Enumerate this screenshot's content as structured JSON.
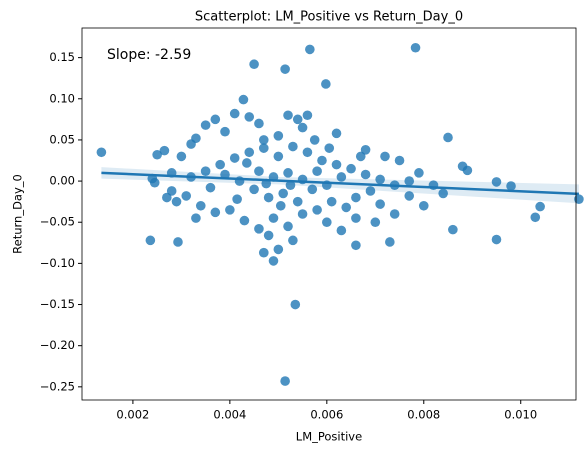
{
  "chart_data": {
    "type": "scatter",
    "title": "Scatterplot: LM_Positive vs Return_Day_0",
    "x_label": "LM_Positive",
    "y_label": "Return_Day_0",
    "annotation": "Slope: -2.59",
    "color": "#1f77b4",
    "x": [
      0.00565,
      0.00783,
      0.0045,
      0.00514,
      0.00598,
      0.00428,
      0.00535,
      0.00514,
      0.00236,
      0.00293,
      0.00135,
      0.0112,
      0.0104,
      0.0103,
      0.0095,
      0.0095,
      0.0098,
      0.0089,
      0.0088,
      0.0085,
      0.0086,
      0.0073,
      0.0066,
      0.0047,
      0.0049,
      0.005,
      0.0053,
      0.0048,
      0.00265,
      0.0025,
      0.0024,
      0.00245,
      0.0028,
      0.0029,
      0.003,
      0.0032,
      0.0033,
      0.0035,
      0.0037,
      0.0039,
      0.0041,
      0.0044,
      0.0046,
      0.0052,
      0.0054,
      0.0056,
      0.0055,
      0.0062,
      0.005,
      0.0047,
      0.0068,
      0.0072,
      0.0075,
      0.0079,
      0.0082,
      0.008,
      0.0077,
      0.0074,
      0.0071,
      0.0069,
      0.0066,
      0.0063,
      0.006,
      0.0058,
      0.0055,
      0.0052,
      0.0049,
      0.0046,
      0.0043,
      0.004,
      0.0037,
      0.0034,
      0.0031,
      0.0028,
      0.0032,
      0.0035,
      0.0038,
      0.0041,
      0.0044,
      0.0047,
      0.005,
      0.0053,
      0.0056,
      0.0059,
      0.0062,
      0.0065,
      0.0068,
      0.0071,
      0.0074,
      0.0077,
      0.0042,
      0.0045,
      0.0048,
      0.0051,
      0.0054,
      0.0057,
      0.006,
      0.0063,
      0.0066,
      0.0036,
      0.0039,
      0.0046,
      0.0049,
      0.0052,
      0.0055,
      0.0058,
      0.0061,
      0.0064,
      0.00505,
      0.00435,
      0.0084,
      0.0067,
      0.007,
      0.0033,
      0.0027,
      0.00415,
      0.00575,
      0.00525,
      0.00475,
      0.00605
    ],
    "values": [
      0.16,
      0.162,
      0.142,
      0.136,
      0.118,
      0.099,
      -0.15,
      -0.243,
      -0.072,
      -0.074,
      0.035,
      -0.022,
      -0.031,
      -0.044,
      -0.071,
      -0.001,
      -0.006,
      0.013,
      0.018,
      0.053,
      -0.059,
      -0.074,
      -0.078,
      -0.087,
      -0.097,
      -0.083,
      -0.072,
      -0.066,
      0.037,
      0.032,
      0.003,
      -0.002,
      0.01,
      -0.025,
      0.03,
      0.045,
      0.052,
      0.068,
      0.075,
      0.06,
      0.082,
      0.078,
      0.07,
      0.08,
      0.075,
      0.08,
      0.065,
      0.058,
      0.055,
      0.05,
      0.038,
      0.03,
      0.025,
      0.01,
      -0.005,
      -0.03,
      -0.018,
      -0.04,
      -0.028,
      -0.012,
      -0.045,
      -0.06,
      -0.05,
      -0.035,
      -0.04,
      -0.055,
      -0.045,
      -0.058,
      -0.048,
      -0.035,
      -0.038,
      -0.03,
      -0.018,
      -0.012,
      0.005,
      0.012,
      0.02,
      0.028,
      0.035,
      0.04,
      0.03,
      0.042,
      0.035,
      0.025,
      0.02,
      0.015,
      0.008,
      0.002,
      -0.005,
      0,
      0,
      -0.01,
      -0.02,
      -0.015,
      -0.025,
      -0.01,
      -0.005,
      0.005,
      -0.02,
      -0.008,
      0.008,
      0.012,
      0.005,
      0.01,
      0.002,
      0.012,
      -0.025,
      -0.032,
      -0.03,
      0.022,
      -0.015,
      0.03,
      -0.05,
      -0.045,
      -0.02,
      -0.022,
      0.05,
      -0.005,
      -0.003,
      0.04
    ],
    "regression": {
      "x": [
        0.00135,
        0.005,
        0.0112
      ],
      "values": [
        0.01,
        0.00055,
        -0.0155
      ],
      "lower": [
        0.003,
        -0.004,
        -0.027
      ],
      "upper": [
        0.017,
        0.005,
        -0.004
      ]
    },
    "xlim": [
      0.00095,
      0.01114
    ],
    "xticks": [
      0.002,
      0.004,
      0.006,
      0.008,
      {
        "value": 0.01,
        "label": "0.010"
      }
    ],
    "ylim": [
      -0.266,
      0.186
    ],
    "yticks": [
      {
        "value": -0.25,
        "label": "−0.25"
      },
      {
        "value": -0.2,
        "label": "−0.20"
      },
      {
        "value": -0.15,
        "label": "−0.15"
      },
      {
        "value": -0.1,
        "label": "−0.10"
      },
      {
        "value": -0.05,
        "label": "−0.05"
      },
      {
        "value": 0,
        "label": "0.00"
      },
      0.05,
      {
        "value": 0.1,
        "label": "0.10"
      },
      0.15
    ]
  }
}
